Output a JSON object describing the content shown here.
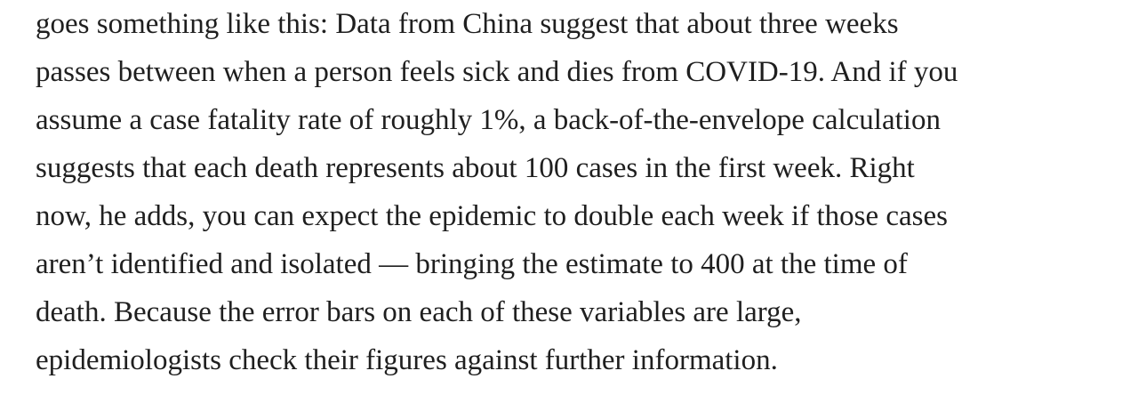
{
  "article": {
    "lines": [
      "goes something like this: Data from China suggest that about three weeks",
      "passes between when a person feels sick and dies from COVID-19. And if you",
      "assume a case fatality rate of roughly 1%, a back-of-the-envelope calculation",
      "suggests that each death represents about 100 cases in the first week. Right",
      "now, he adds, you can expect the epidemic to double each week if those cases",
      "aren’t identified and isolated — bringing the estimate to 400 at the time of",
      "death. Because the error bars on each of these variables are large,",
      "epidemiologists check their figures against further information."
    ]
  }
}
